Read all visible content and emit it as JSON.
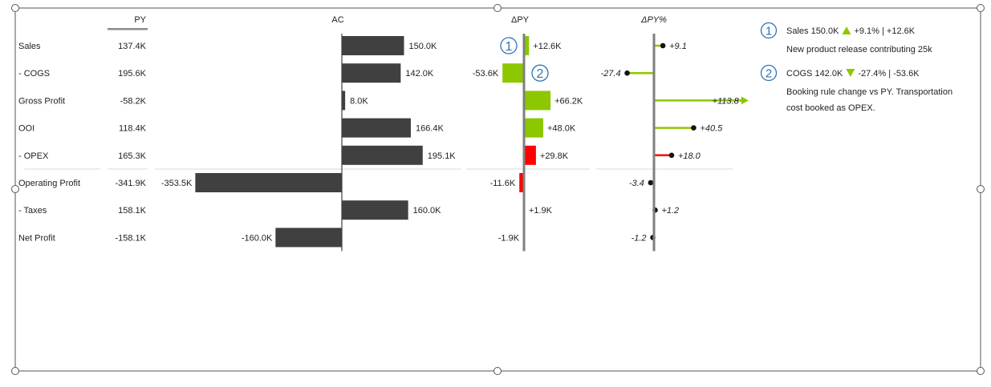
{
  "colors": {
    "bar": "#404040",
    "positive": "#8cc700",
    "negative": "#ff0000",
    "axis": "#7f7f7f",
    "badge": "#2e75b6",
    "frame": "#555555"
  },
  "chart_data": {
    "type": "table",
    "columns": {
      "py": "PY",
      "ac": "AC",
      "dpy": "ΔPY",
      "dpy_pct": "ΔPY%"
    },
    "rows": [
      {
        "label": "Sales",
        "py": 137.4,
        "py_text": "137.4K",
        "ac": 150.0,
        "ac_text": "150.0K",
        "dpy": 12.6,
        "dpy_text": "+12.6K",
        "dpy_pct": 9.1,
        "dpy_pct_text": "+9.1"
      },
      {
        "label": "- COGS",
        "py": 195.6,
        "py_text": "195.6K",
        "ac": 142.0,
        "ac_text": "142.0K",
        "dpy": -53.6,
        "dpy_text": "-53.6K",
        "dpy_pct": -27.4,
        "dpy_pct_text": "-27.4"
      },
      {
        "label": "Gross Profit",
        "py": -58.2,
        "py_text": "-58.2K",
        "ac": 8.0,
        "ac_text": "8.0K",
        "dpy": 66.2,
        "dpy_text": "+66.2K",
        "dpy_pct": 113.8,
        "dpy_pct_text": "+113.8"
      },
      {
        "label": "OOI",
        "py": 118.4,
        "py_text": "118.4K",
        "ac": 166.4,
        "ac_text": "166.4K",
        "dpy": 48.0,
        "dpy_text": "+48.0K",
        "dpy_pct": 40.5,
        "dpy_pct_text": "+40.5"
      },
      {
        "label": "- OPEX",
        "py": 165.3,
        "py_text": "165.3K",
        "ac": 195.1,
        "ac_text": "195.1K",
        "dpy": 29.8,
        "dpy_text": "+29.8K",
        "dpy_pct": 18.0,
        "dpy_pct_text": "+18.0"
      },
      {
        "label": "Operating Profit",
        "py": -341.9,
        "py_text": "-341.9K",
        "ac": -353.5,
        "ac_text": "-353.5K",
        "dpy": -11.6,
        "dpy_text": "-11.6K",
        "dpy_pct": -3.4,
        "dpy_pct_text": "-3.4"
      },
      {
        "label": "- Taxes",
        "py": 158.1,
        "py_text": "158.1K",
        "ac": 160.0,
        "ac_text": "160.0K",
        "dpy": 1.9,
        "dpy_text": "+1.9K",
        "dpy_pct": 1.2,
        "dpy_pct_text": "+1.2"
      },
      {
        "label": "Net Profit",
        "py": -158.1,
        "py_text": "-158.1K",
        "ac": -160.0,
        "ac_text": "-160.0K",
        "dpy": -1.9,
        "dpy_text": "-1.9K",
        "dpy_pct": -1.2,
        "dpy_pct_text": "-1.2"
      }
    ],
    "dpy_sign_polarity": [
      "pos",
      "pos",
      "pos",
      "pos",
      "neg",
      "neg",
      "pos",
      "neg"
    ],
    "dpy_pct_sign_polarity": [
      "pos",
      "pos",
      "pos",
      "pos",
      "neg",
      "neg",
      "pos",
      "neg"
    ],
    "dpy_pct_axis_clipped": [
      false,
      false,
      true,
      false,
      false,
      false,
      false,
      false
    ],
    "grid": false,
    "legend": "none"
  },
  "annotations": [
    {
      "number": "1",
      "row": 0,
      "column": "dpy",
      "title_prefix": "Sales 150.0K",
      "arrow": "up",
      "title_suffix": "+9.1% | +12.6K",
      "lines": [
        "New product release contributing 25k"
      ]
    },
    {
      "number": "2",
      "row": 1,
      "column": "dpy",
      "title_prefix": "COGS 142.0K",
      "arrow": "down",
      "title_suffix": "-27.4% | -53.6K",
      "lines": [
        "Booking rule change vs PY. Transportation",
        "cost booked as OPEX."
      ]
    }
  ]
}
